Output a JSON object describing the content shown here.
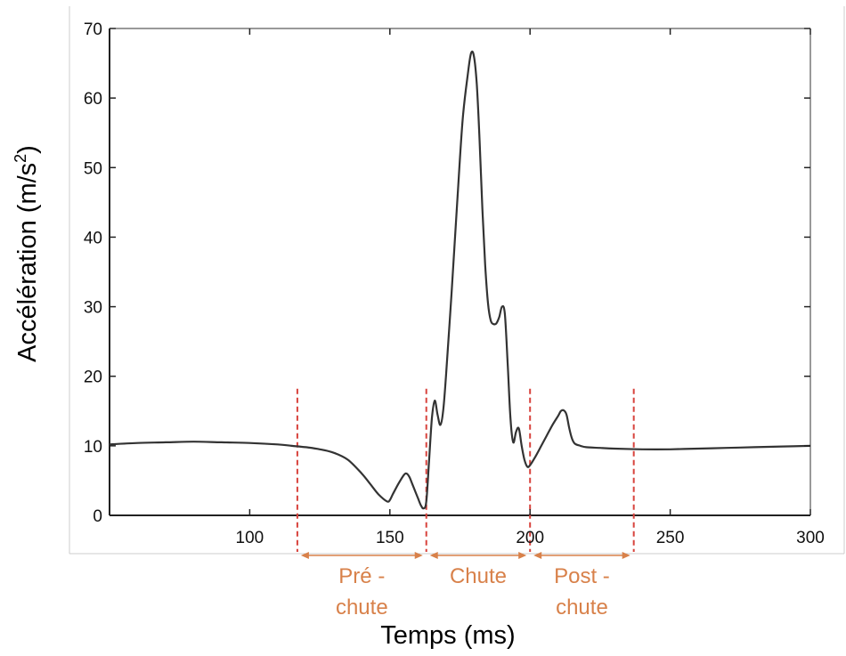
{
  "chart_data": {
    "type": "line",
    "xlabel": "Temps (ms)",
    "ylabel_main": "Accélération (m/s",
    "ylabel_sup": "2",
    "ylabel_end": ")",
    "xlim": [
      50,
      300
    ],
    "ylim": [
      0,
      70
    ],
    "x_ticks": [
      100,
      150,
      200,
      250,
      300
    ],
    "y_ticks": [
      0,
      10,
      20,
      30,
      40,
      50,
      60,
      70
    ],
    "grid": false,
    "series": [
      {
        "color": "#333333",
        "x": [
          50,
          60,
          70,
          80,
          90,
          100,
          110,
          115,
          120,
          125,
          130,
          135,
          140,
          143,
          146,
          149,
          150,
          151,
          153,
          155,
          156,
          157,
          158,
          159,
          160,
          161,
          162,
          163,
          164,
          165,
          166,
          167,
          168,
          169,
          170,
          172,
          174,
          176,
          178,
          179,
          180,
          181,
          182,
          183,
          184,
          185,
          186,
          187,
          188,
          189,
          190,
          191,
          192,
          193,
          194,
          195,
          196,
          197,
          198,
          199,
          200,
          202,
          204,
          206,
          208,
          210,
          211,
          212,
          213,
          214,
          215,
          216,
          218,
          220,
          225,
          230,
          240,
          250,
          260,
          270,
          280,
          290,
          300
        ],
        "y": [
          10.2,
          10.4,
          10.5,
          10.6,
          10.5,
          10.4,
          10.2,
          10.0,
          9.8,
          9.5,
          9.0,
          8.0,
          6.0,
          4.5,
          3.0,
          2.0,
          2.2,
          3.0,
          4.5,
          5.8,
          6.0,
          5.5,
          4.5,
          3.5,
          2.5,
          1.5,
          1.0,
          2.0,
          8.0,
          14.0,
          16.5,
          14.5,
          13.0,
          15.0,
          20.0,
          32.0,
          45.0,
          57.0,
          64.0,
          66.5,
          66.0,
          62.0,
          54.0,
          44.0,
          36.0,
          30.5,
          28.0,
          27.5,
          27.6,
          28.5,
          30.0,
          29.0,
          22.0,
          14.0,
          10.5,
          12.0,
          12.5,
          10.0,
          8.0,
          7.0,
          7.2,
          8.5,
          10.0,
          11.5,
          13.0,
          14.3,
          15.0,
          15.1,
          14.5,
          12.5,
          11.0,
          10.3,
          10.0,
          9.8,
          9.7,
          9.6,
          9.5,
          9.5,
          9.6,
          9.7,
          9.8,
          9.9,
          10.0
        ]
      }
    ],
    "phase_color": "#d8814a",
    "phase_line_color": "#d8433d",
    "phase_boundaries": [
      117,
      163,
      200,
      237
    ],
    "phases": [
      {
        "start": 117,
        "end": 163,
        "line1": "Pré -",
        "line2": "chute"
      },
      {
        "start": 163,
        "end": 200,
        "line1": "Chute",
        "line2": ""
      },
      {
        "start": 200,
        "end": 237,
        "line1": "Post -",
        "line2": "chute"
      }
    ]
  }
}
